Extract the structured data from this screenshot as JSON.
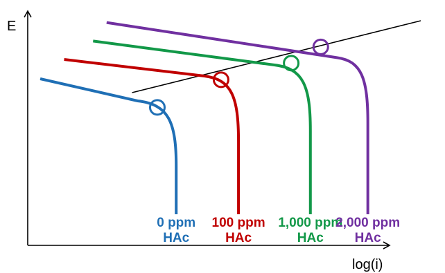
{
  "chart_data": {
    "type": "line",
    "title": "",
    "xlabel": "log(i)",
    "ylabel": "E",
    "grid": false,
    "legend": "none",
    "x_tick_labels": false,
    "y_tick_labels": false,
    "anodic_line": {
      "color": "#000000",
      "from": [
        0.2655,
        0.6286
      ],
      "to": [
        1.0,
        1.0
      ]
    },
    "series": [
      {
        "label_line1": "0 ppm",
        "label_line2": "HAc",
        "color": "#1f6fb5",
        "cathodic_start": [
          0.0318,
          0.7
        ],
        "elbow": [
          0.2795,
          0.5857
        ],
        "limiting_current_x": 0.3778,
        "curve_end_y": 0.0,
        "intersection": [
          0.3298,
          0.5524
        ]
      },
      {
        "label_line1": "100 ppm",
        "label_line2": "HAc",
        "color": "#c00000",
        "cathodic_start": [
          0.0927,
          0.8
        ],
        "elbow": [
          0.4496,
          0.7143
        ],
        "limiting_current_x": 0.5363,
        "curve_end_y": 0.0,
        "intersection": [
          0.4919,
          0.6952
        ]
      },
      {
        "label_line1": "1,000 ppm",
        "label_line2": "HAc",
        "color": "#129848",
        "cathodic_start": [
          0.1663,
          0.8952
        ],
        "elbow": [
          0.6276,
          0.7714
        ],
        "limiting_current_x": 0.7192,
        "curve_end_y": 0.0,
        "intersection": [
          0.6704,
          0.781
        ]
      },
      {
        "label_line1": "2,000 ppm",
        "label_line2": "HAc",
        "color": "#7030a0",
        "cathodic_start": [
          0.2007,
          0.9905
        ],
        "elbow": [
          0.7866,
          0.8095
        ],
        "limiting_current_x": 0.8654,
        "curve_end_y": 0.0,
        "intersection": [
          0.7456,
          0.8648
        ]
      }
    ]
  }
}
